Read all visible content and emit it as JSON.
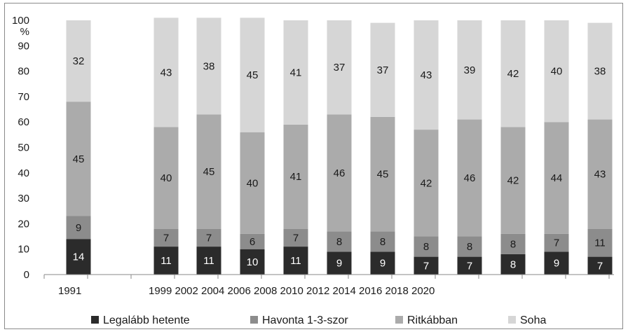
{
  "chart_data": {
    "type": "bar",
    "stacked": true,
    "unit_label": "%",
    "ylim": [
      0,
      100
    ],
    "yticks": [
      0,
      10,
      20,
      30,
      40,
      50,
      60,
      70,
      80,
      90,
      100
    ],
    "categories": [
      "1991",
      "",
      "1999",
      "2002",
      "2004",
      "2006",
      "2008",
      "2010",
      "2012",
      "2014",
      "2016",
      "2018",
      "2020"
    ],
    "xtick_labels": [
      "1991",
      "",
      "1999",
      "2002",
      "2004",
      "2006",
      "2008",
      "2010",
      "2012",
      "2014",
      "2016",
      "2018",
      "2020"
    ],
    "series": [
      {
        "name": "Legalább hetente",
        "color": "#2b2b2b",
        "values": [
          14,
          null,
          11,
          11,
          10,
          11,
          9,
          9,
          7,
          7,
          8,
          9,
          7
        ]
      },
      {
        "name": "Havonta 1-3-szor",
        "color": "#8c8c8c",
        "values": [
          9,
          null,
          7,
          7,
          6,
          7,
          8,
          8,
          8,
          8,
          8,
          7,
          11
        ]
      },
      {
        "name": "Ritkábban",
        "color": "#ababab",
        "values": [
          45,
          null,
          40,
          45,
          40,
          41,
          46,
          45,
          42,
          46,
          42,
          44,
          43
        ]
      },
      {
        "name": "Soha",
        "color": "#d6d6d6",
        "values": [
          32,
          null,
          43,
          38,
          45,
          41,
          37,
          37,
          43,
          39,
          42,
          40,
          38
        ]
      }
    ],
    "legend_position": "bottom",
    "grid": false
  }
}
